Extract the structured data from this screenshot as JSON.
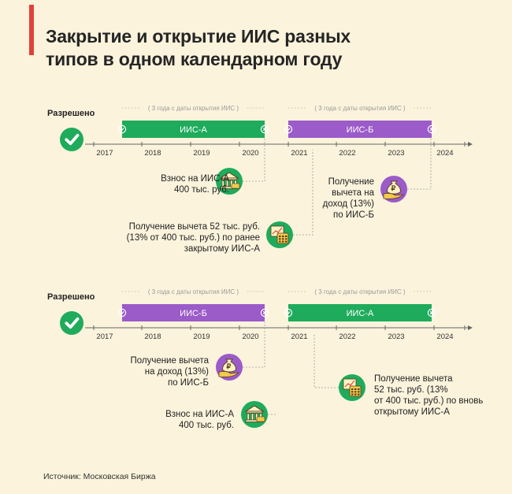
{
  "title_lines": [
    "Закрытие и открытие ИИС разных",
    "типов в одном календарном году"
  ],
  "colors": {
    "green": "#1fab5c",
    "purple": "#9b5bc9",
    "accent": "#e0413a",
    "background": "#fbf3dc"
  },
  "years": [
    "2017",
    "2018",
    "2019",
    "2020",
    "2021",
    "2022",
    "2023",
    "2024"
  ],
  "period_label": "( 3 года с даты открытия ИИС )",
  "source": "Источник: Московская Биржа",
  "scenarios": [
    {
      "allowed_label": "Разрешено",
      "bars": [
        {
          "label": "ИИС-А",
          "color_key": "green"
        },
        {
          "label": "ИИС-Б",
          "color_key": "purple"
        }
      ],
      "notes": [
        {
          "lines": [
            "Взнос на ИИС-А",
            "400 тыс. руб."
          ],
          "icon": "bank-icon"
        },
        {
          "lines": [
            "Получение вычета 52 тыс. руб.",
            "(13% от 400 тыс. руб.) по ранее",
            "закрытому ИИС-А"
          ],
          "icon": "calculator-chart-icon"
        },
        {
          "lines": [
            "Получение",
            "вычета на",
            "доход (13%)",
            "по ИИС-Б"
          ],
          "icon": "money-bag-hand-icon"
        }
      ]
    },
    {
      "allowed_label": "Разрешено",
      "bars": [
        {
          "label": "ИИС-Б",
          "color_key": "purple"
        },
        {
          "label": "ИИС-А",
          "color_key": "green"
        }
      ],
      "notes": [
        {
          "lines": [
            "Получение вычета",
            "на доход (13%)",
            "по ИИС-Б"
          ],
          "icon": "money-bag-hand-icon"
        },
        {
          "lines": [
            "Взнос на ИИС-А",
            "400 тыс. руб."
          ],
          "icon": "bank-icon"
        },
        {
          "lines": [
            "Получение вычета",
            "52 тыс. руб. (13%",
            "от 400 тыс. руб.) по вновь",
            "открытому ИИС-А"
          ],
          "icon": "calculator-chart-icon"
        }
      ]
    }
  ]
}
